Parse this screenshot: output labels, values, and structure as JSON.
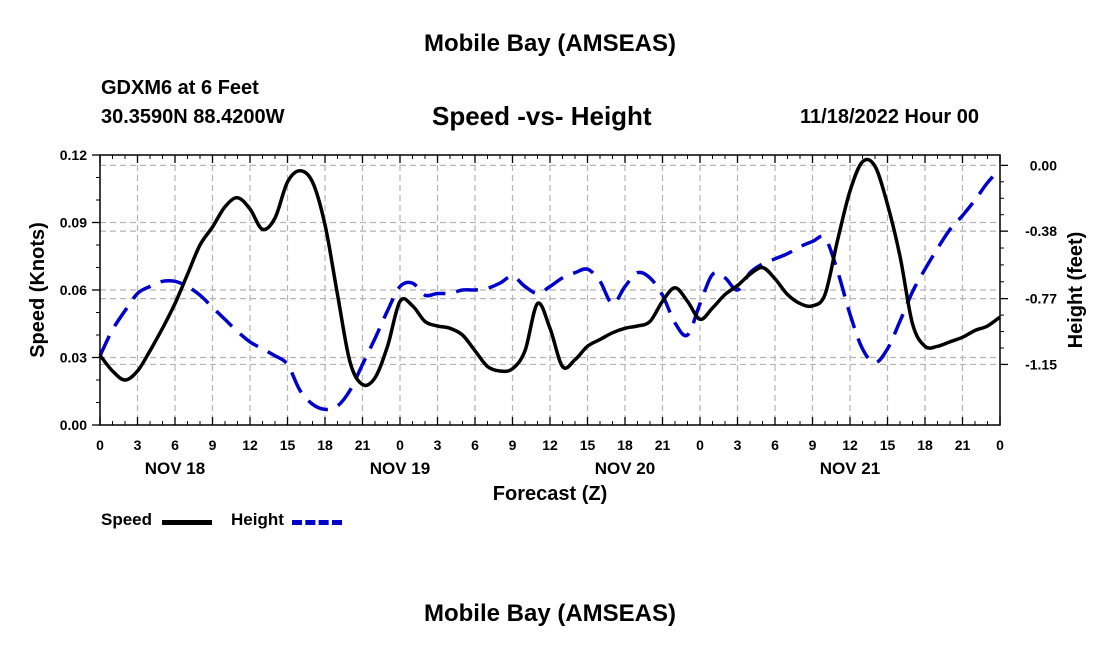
{
  "header": {
    "title": "Mobile Bay (AMSEAS)",
    "station": "GDXM6 at 6 Feet",
    "coords": "30.3590N  88.4200W",
    "subtitle": "Speed -vs- Height",
    "datetime": "11/18/2022 Hour 00"
  },
  "footer": {
    "title": "Mobile Bay (AMSEAS)"
  },
  "legend": {
    "speed_label": "Speed",
    "height_label": "Height"
  },
  "colors": {
    "speed": "#000000",
    "height": "#0000cc",
    "grid": "#b4b4b4"
  },
  "chart_data": {
    "type": "line",
    "title": "Speed -vs- Height",
    "xlabel": "Forecast (Z)",
    "ylabel": "Speed (Knots)",
    "y2label": "Height (feet)",
    "xlim": [
      0,
      72
    ],
    "ylim": [
      0,
      0.12
    ],
    "y2lim": [
      -1.5,
      0.06
    ],
    "x_ticks": [
      0,
      3,
      6,
      9,
      12,
      15,
      18,
      21,
      24,
      27,
      30,
      33,
      36,
      39,
      42,
      45,
      48,
      51,
      54,
      57,
      60,
      63,
      66,
      69,
      72
    ],
    "x_tick_labels": [
      "0",
      "3",
      "6",
      "9",
      "12",
      "15",
      "18",
      "21",
      "0",
      "3",
      "6",
      "9",
      "12",
      "15",
      "18",
      "21",
      "0",
      "3",
      "6",
      "9",
      "12",
      "15",
      "18",
      "21",
      "0"
    ],
    "day_labels": [
      {
        "x": 6,
        "label": "NOV 18"
      },
      {
        "x": 24,
        "label": "NOV 19"
      },
      {
        "x": 42,
        "label": "NOV 20"
      },
      {
        "x": 60,
        "label": "NOV 21"
      }
    ],
    "y_ticks": [
      0.0,
      0.03,
      0.06,
      0.09,
      0.12
    ],
    "y_tick_labels": [
      "0.00",
      "0.03",
      "0.06",
      "0.09",
      "0.12"
    ],
    "y2_ticks": [
      0.0,
      -0.38,
      -0.77,
      -1.15
    ],
    "y2_tick_labels": [
      "0.00",
      "-0.38",
      "-0.77",
      "-1.15"
    ],
    "grid": true,
    "legend_position": "bottom-left",
    "series": [
      {
        "name": "Speed",
        "axis": "left",
        "style": "solid",
        "x": [
          0,
          1,
          2,
          3,
          4,
          5,
          6,
          7,
          8,
          9,
          10,
          11,
          12,
          13,
          14,
          15,
          16,
          17,
          18,
          19,
          20,
          21,
          22,
          23,
          24,
          25,
          26,
          27,
          28,
          29,
          30,
          31,
          32,
          33,
          34,
          35,
          36,
          37,
          38,
          39,
          40,
          41,
          42,
          43,
          44,
          45,
          46,
          47,
          48,
          49,
          50,
          51,
          52,
          53,
          54,
          55,
          56,
          57,
          58,
          59,
          60,
          61,
          62,
          63,
          64,
          65,
          66,
          67,
          68,
          69,
          70,
          71,
          72
        ],
        "values": [
          0.031,
          0.024,
          0.02,
          0.024,
          0.033,
          0.043,
          0.054,
          0.067,
          0.08,
          0.088,
          0.097,
          0.101,
          0.096,
          0.087,
          0.092,
          0.108,
          0.113,
          0.108,
          0.089,
          0.058,
          0.028,
          0.018,
          0.021,
          0.035,
          0.055,
          0.053,
          0.046,
          0.044,
          0.043,
          0.04,
          0.033,
          0.026,
          0.024,
          0.025,
          0.033,
          0.054,
          0.043,
          0.026,
          0.029,
          0.035,
          0.038,
          0.041,
          0.043,
          0.044,
          0.046,
          0.055,
          0.061,
          0.055,
          0.047,
          0.052,
          0.058,
          0.062,
          0.067,
          0.07,
          0.065,
          0.058,
          0.054,
          0.053,
          0.058,
          0.082,
          0.104,
          0.117,
          0.115,
          0.098,
          0.075,
          0.045,
          0.035,
          0.035,
          0.037,
          0.039,
          0.042,
          0.044,
          0.048
        ]
      },
      {
        "name": "Height",
        "axis": "right",
        "style": "dashed",
        "x": [
          0,
          1,
          2,
          3,
          4,
          5,
          6,
          7,
          8,
          9,
          10,
          11,
          12,
          13,
          14,
          15,
          16,
          17,
          18,
          19,
          20,
          21,
          22,
          23,
          24,
          25,
          26,
          27,
          28,
          29,
          30,
          31,
          32,
          33,
          34,
          35,
          36,
          37,
          38,
          39,
          40,
          41,
          42,
          43,
          44,
          45,
          46,
          47,
          48,
          49,
          50,
          51,
          52,
          53,
          54,
          55,
          56,
          57,
          58,
          59,
          60,
          61,
          62,
          63,
          64,
          65,
          66,
          67,
          68,
          69,
          70,
          71,
          72
        ],
        "values": [
          -1.1,
          -0.95,
          -0.84,
          -0.74,
          -0.7,
          -0.67,
          -0.67,
          -0.7,
          -0.75,
          -0.82,
          -0.89,
          -0.96,
          -1.02,
          -1.06,
          -1.1,
          -1.15,
          -1.3,
          -1.38,
          -1.41,
          -1.39,
          -1.3,
          -1.15,
          -1.0,
          -0.84,
          -0.7,
          -0.68,
          -0.75,
          -0.74,
          -0.74,
          -0.72,
          -0.72,
          -0.71,
          -0.68,
          -0.64,
          -0.7,
          -0.74,
          -0.7,
          -0.65,
          -0.62,
          -0.6,
          -0.67,
          -0.8,
          -0.7,
          -0.62,
          -0.65,
          -0.75,
          -0.91,
          -0.98,
          -0.8,
          -0.63,
          -0.65,
          -0.72,
          -0.62,
          -0.57,
          -0.54,
          -0.51,
          -0.47,
          -0.44,
          -0.42,
          -0.61,
          -0.86,
          -1.06,
          -1.14,
          -1.06,
          -0.9,
          -0.73,
          -0.6,
          -0.48,
          -0.37,
          -0.29,
          -0.2,
          -0.1,
          -0.02
        ]
      }
    ]
  }
}
